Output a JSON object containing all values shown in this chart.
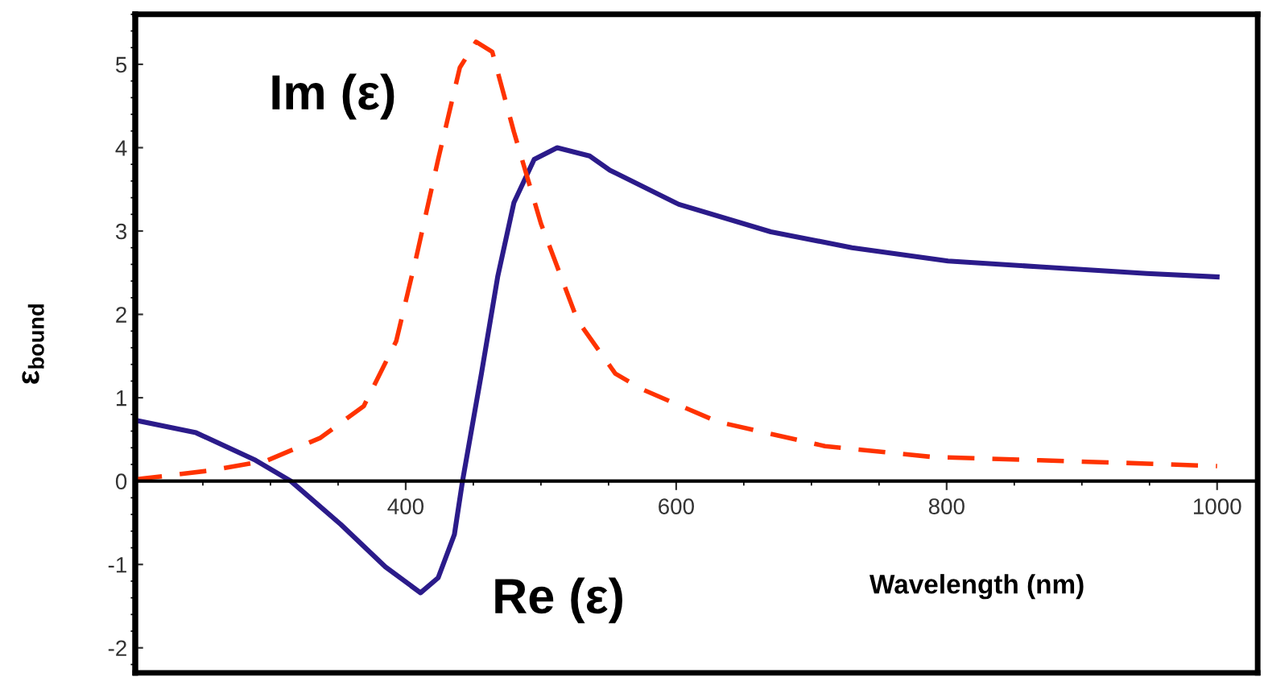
{
  "chart_data": {
    "type": "line",
    "xlabel": "Wavelength (nm)",
    "ylabel": "ε$_{bound}$",
    "xlim": [
      200,
      1030
    ],
    "ylim": [
      -2.3,
      5.6
    ],
    "xticks": [
      400,
      600,
      800,
      1000
    ],
    "yticks": [
      -2,
      -1,
      0,
      1,
      2,
      3,
      4,
      5
    ],
    "grid": false,
    "legend": false,
    "series": [
      {
        "color": "#2b1b8a",
        "line_style": "solid",
        "x": [
          200,
          245,
          289,
          315,
          352,
          385,
          411,
          424,
          436,
          442,
          456,
          468,
          480,
          495,
          512,
          536,
          551,
          602,
          670,
          730,
          801,
          869,
          948,
          1000
        ],
        "values": [
          0.73,
          0.58,
          0.25,
          0,
          -0.52,
          -1.03,
          -1.34,
          -1.16,
          -0.64,
          0,
          1.29,
          2.45,
          3.34,
          3.86,
          4.0,
          3.9,
          3.73,
          3.32,
          2.99,
          2.8,
          2.64,
          2.57,
          2.49,
          2.45
        ]
      },
      {
        "color": "#ff3300",
        "line_style": "dashed",
        "x": [
          200,
          257,
          298,
          337,
          369,
          393,
          408,
          424,
          440,
          452,
          464,
          480,
          500,
          527,
          555,
          575,
          631,
          710,
          789,
          869,
          948,
          1000
        ],
        "values": [
          0.02,
          0.13,
          0.25,
          0.52,
          0.9,
          1.68,
          2.7,
          3.86,
          4.96,
          5.27,
          5.15,
          4.19,
          3.09,
          1.93,
          1.29,
          1.1,
          0.71,
          0.42,
          0.29,
          0.25,
          0.21,
          0.18
        ]
      }
    ],
    "annotations": [
      "Im (ε)",
      "Re (ε)"
    ]
  }
}
